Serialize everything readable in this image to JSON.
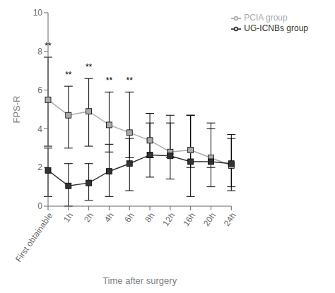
{
  "chart_data": {
    "type": "line",
    "xlabel": "Time after surgery",
    "ylabel": "FPS-R",
    "categories": [
      "First obtainable",
      "1h",
      "2h",
      "4h",
      "6h",
      "8h",
      "12h",
      "16h",
      "20h",
      "24h"
    ],
    "series": [
      {
        "name": "PCIA  group",
        "color": "#aaaaaa",
        "marker": "square",
        "line_style": "solid",
        "values": [
          5.5,
          4.7,
          4.9,
          4.2,
          3.8,
          3.4,
          2.8,
          2.9,
          2.5,
          2.1
        ],
        "upper": [
          7.7,
          6.2,
          6.6,
          5.9,
          5.9,
          4.8,
          4.7,
          4.7,
          4.3,
          3.7
        ],
        "lower": [
          3.1,
          3.0,
          3.1,
          2.8,
          2.5,
          2.5,
          2.5,
          2.0,
          2.0,
          1.0
        ]
      },
      {
        "name": "UG-ICNBs  group",
        "color": "#333333",
        "marker": "square",
        "line_style": "solid",
        "values": [
          1.85,
          1.05,
          1.2,
          1.8,
          2.2,
          2.65,
          2.6,
          2.3,
          2.3,
          2.2
        ],
        "upper": [
          3.0,
          2.2,
          2.2,
          3.2,
          3.5,
          4.3,
          4.3,
          4.7,
          4.0,
          3.5
        ],
        "lower": [
          0.5,
          0.0,
          0.3,
          0.5,
          0.8,
          1.5,
          1.4,
          0.5,
          1.0,
          0.8
        ]
      }
    ],
    "annotations": [
      {
        "text": "**",
        "x": "First obtainable",
        "y": 7.95
      },
      {
        "text": "**",
        "x": "1h",
        "y": 6.45
      },
      {
        "text": "**",
        "x": "2h",
        "y": 6.85
      },
      {
        "text": "**",
        "x": "4h",
        "y": 6.15
      },
      {
        "text": "**",
        "x": "6h",
        "y": 6.15
      }
    ],
    "ylim": [
      0,
      10
    ],
    "yticks": [
      0,
      2,
      4,
      6,
      8,
      10
    ],
    "grid": false,
    "legend": "upper right"
  }
}
